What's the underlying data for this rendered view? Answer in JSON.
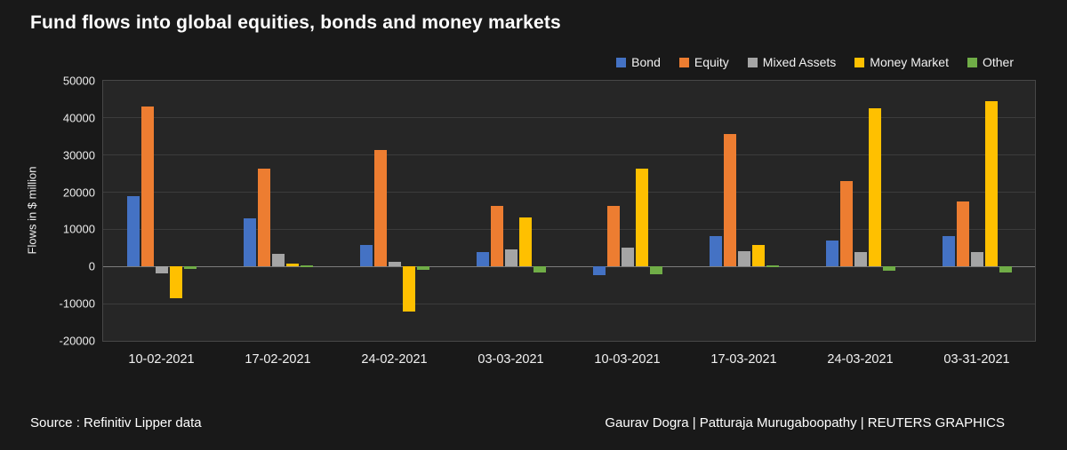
{
  "page": {
    "title": "Fund flows into global equities, bonds and money markets",
    "source": "Source : Refinitiv Lipper data",
    "credits": "Gaurav Dogra | Patturaja Murugaboopathy | REUTERS GRAPHICS"
  },
  "chart_data": {
    "type": "bar",
    "title": "Fund flows into global equities, bonds and money markets",
    "xlabel": "",
    "ylabel": "Flows in $ million",
    "ylim": [
      -20000,
      50000
    ],
    "ytick_step": 10000,
    "grid": true,
    "legend_position": "top-right",
    "background": "#191919",
    "plot_background": "#262626",
    "categories": [
      "10-02-2021",
      "17-02-2021",
      "24-02-2021",
      "03-03-2021",
      "10-03-2021",
      "17-03-2021",
      "24-03-2021",
      "03-31-2021"
    ],
    "series": [
      {
        "name": "Bond",
        "color": "#4472c4",
        "values": [
          19000,
          13000,
          5700,
          3800,
          -2400,
          8100,
          6900,
          8200
        ]
      },
      {
        "name": "Equity",
        "color": "#ed7d31",
        "values": [
          43000,
          26400,
          31400,
          16200,
          16200,
          35700,
          23100,
          17600
        ]
      },
      {
        "name": "Mixed Assets",
        "color": "#a5a5a5",
        "values": [
          -1900,
          3300,
          1200,
          4700,
          5000,
          4100,
          3800,
          4000
        ]
      },
      {
        "name": "Money Market",
        "color": "#ffc000",
        "values": [
          -8500,
          700,
          -12000,
          13300,
          26400,
          5700,
          42500,
          44400
        ]
      },
      {
        "name": "Other",
        "color": "#70ad47",
        "values": [
          -700,
          200,
          -800,
          -1600,
          -2100,
          200,
          -1200,
          -1700
        ]
      }
    ]
  }
}
